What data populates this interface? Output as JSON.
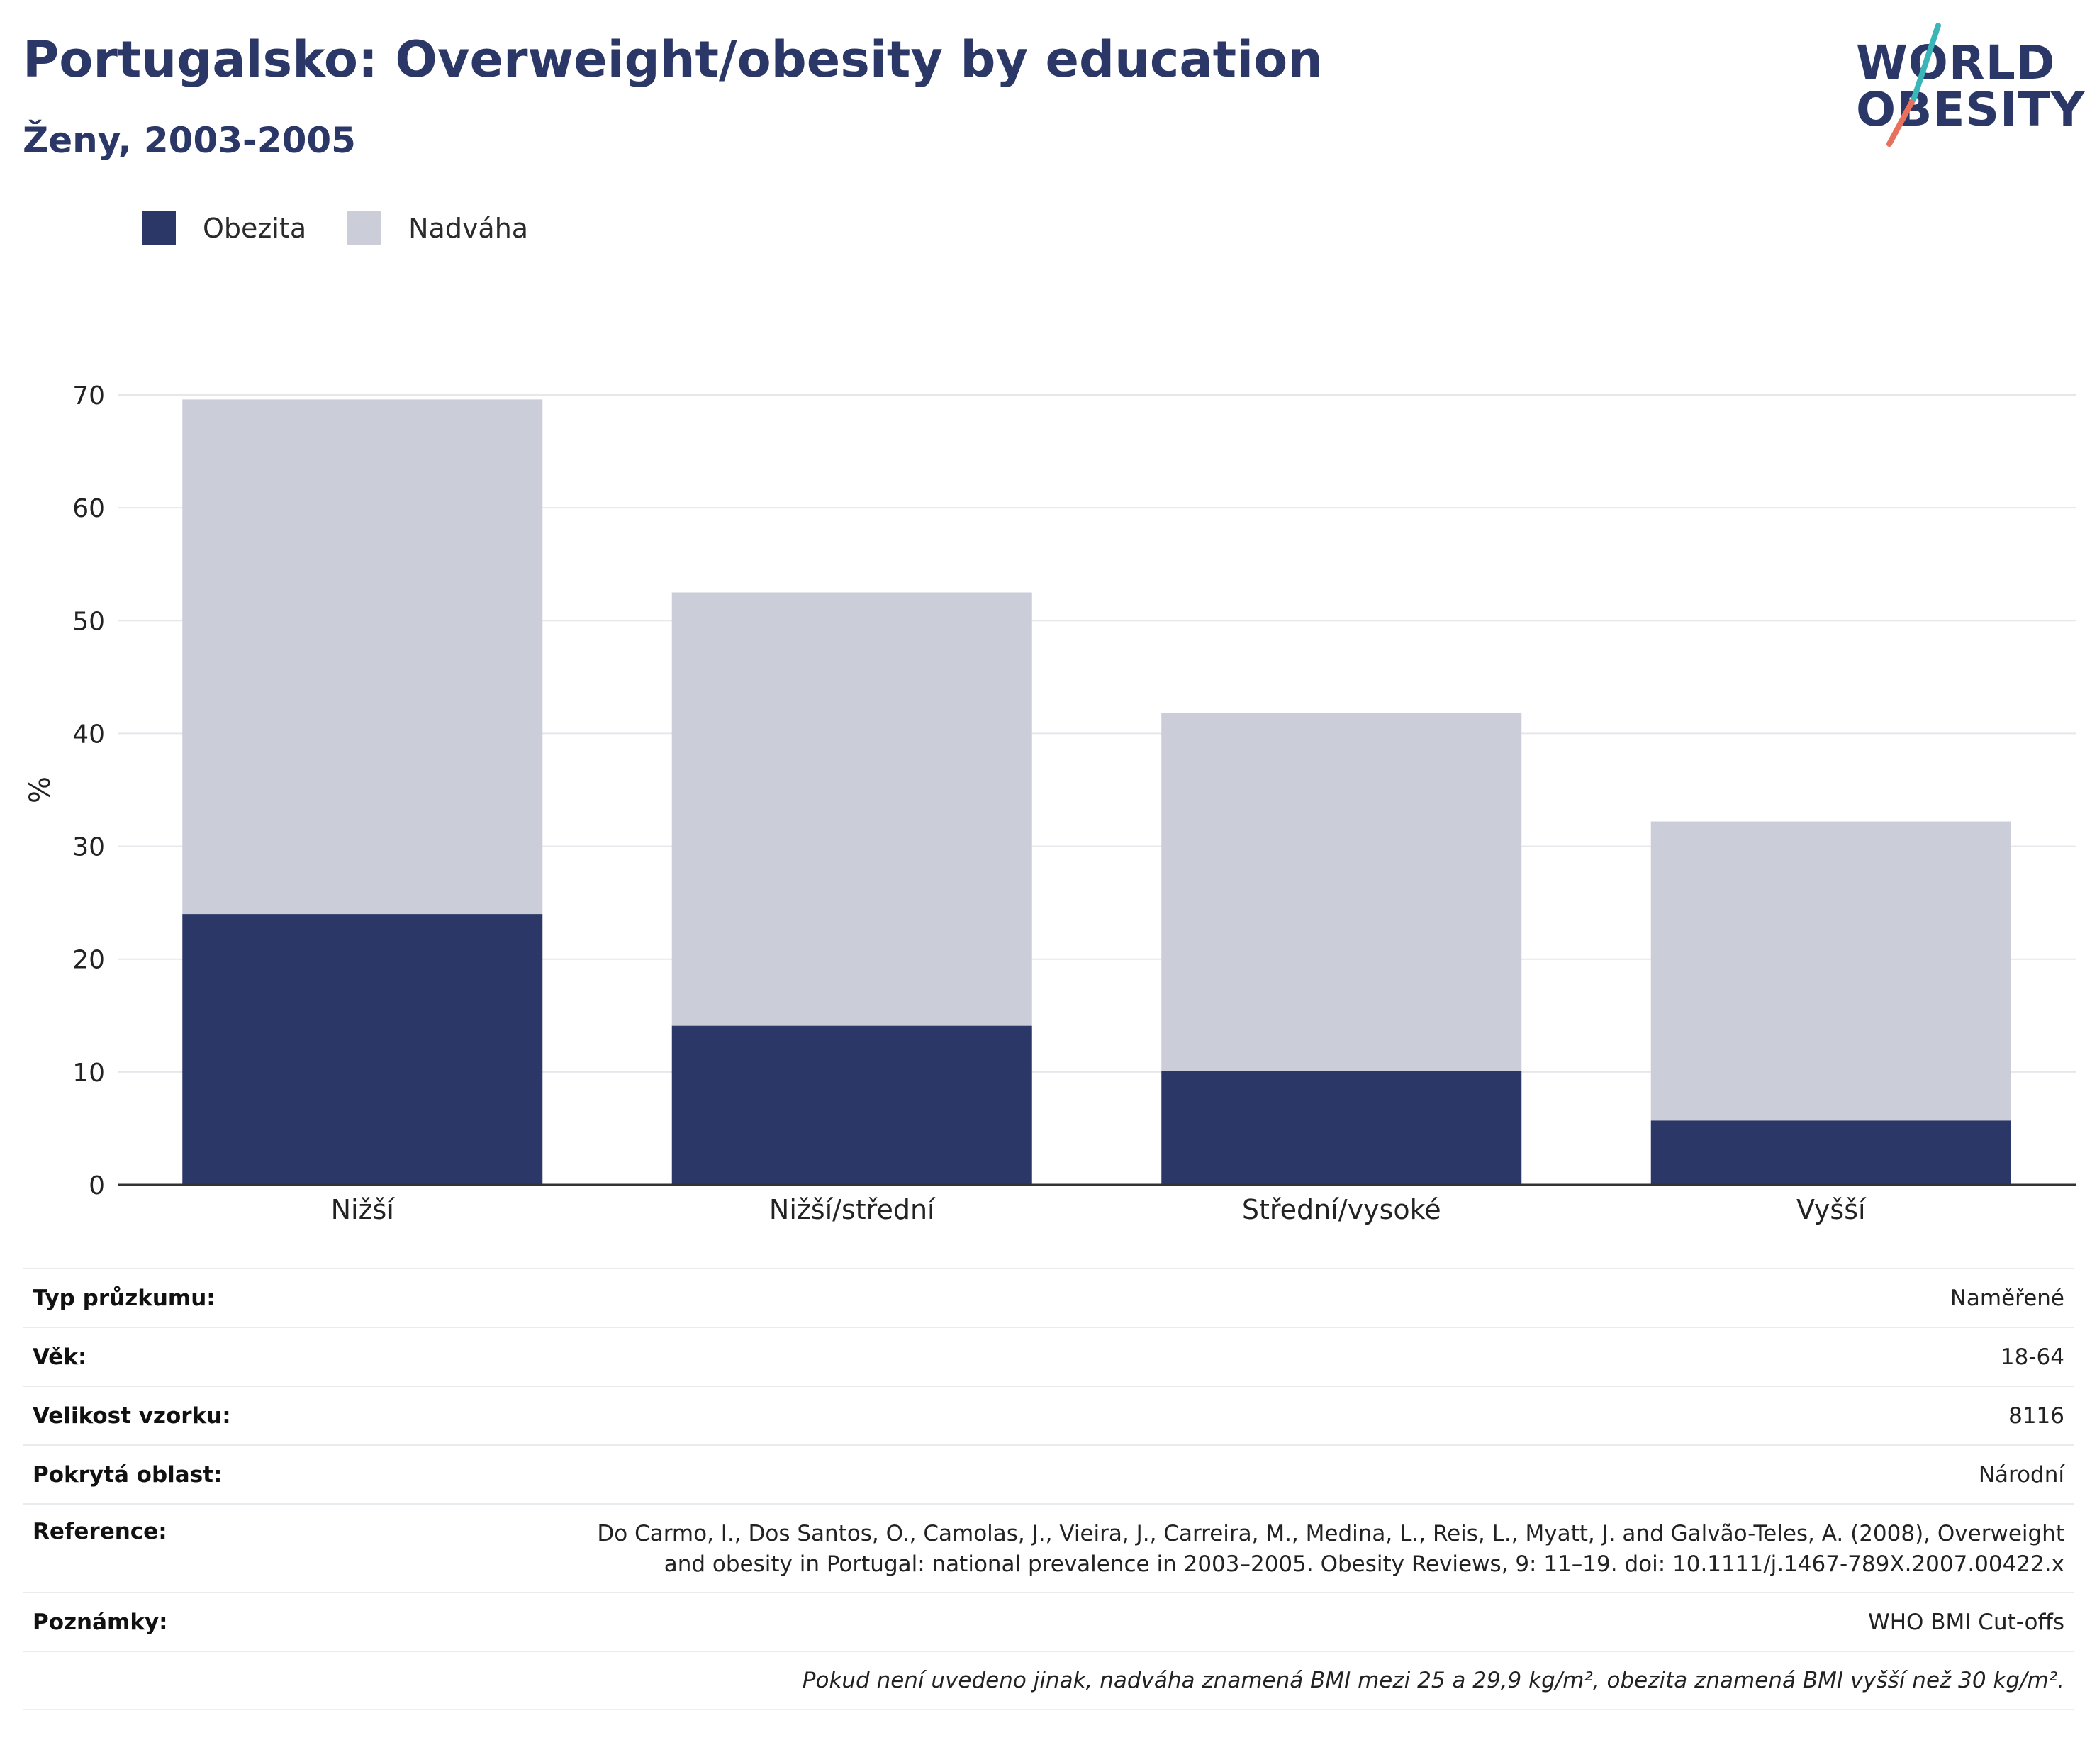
{
  "title": "Portugalsko: Overweight/obesity by education",
  "subtitle": "Ženy, 2003-2005",
  "logo": {
    "line1": "WORLD",
    "line2": "OBESITY"
  },
  "legend": [
    {
      "label": "Obezita",
      "color": "#2b3766"
    },
    {
      "label": "Nadváha",
      "color": "#cbcdd8"
    }
  ],
  "chart_data": {
    "type": "bar",
    "stacked": true,
    "categories": [
      "Nižší",
      "Nižší/střední",
      "Střední/vysoké",
      "Vyšší"
    ],
    "series": [
      {
        "name": "Obezita",
        "color": "#2b3766",
        "values": [
          24.0,
          14.1,
          10.1,
          5.7
        ]
      },
      {
        "name": "Nadváha",
        "color": "#cbcdd8",
        "values": [
          45.6,
          38.4,
          31.7,
          26.5
        ]
      }
    ],
    "totals": [
      69.6,
      52.5,
      41.8,
      32.2
    ],
    "ylabel": "%",
    "xlabel": "",
    "ylim": [
      0,
      70
    ],
    "yticks": [
      0,
      10,
      20,
      30,
      40,
      50,
      60,
      70
    ],
    "grid": true,
    "legend_position": "top-left"
  },
  "info": {
    "survey_type": {
      "label": "Typ průzkumu:",
      "value": "Naměřené"
    },
    "age": {
      "label": "Věk:",
      "value": "18-64"
    },
    "sample_size": {
      "label": "Velikost vzorku:",
      "value": "8116"
    },
    "area": {
      "label": "Pokrytá oblast:",
      "value": "Národní"
    },
    "reference": {
      "label": "Reference:",
      "value": "Do Carmo, I., Dos Santos, O., Camolas, J., Vieira, J., Carreira, M., Medina, L., Reis, L., Myatt, J. and Galvão-Teles, A. (2008), Overweight and obesity in Portugal: national prevalence in 2003–2005. Obesity Reviews, 9: 11–19. doi: 10.1111/j.1467-789X.2007.00422.x"
    },
    "notes": {
      "label": "Poznámky:",
      "value": "WHO BMI Cut-offs"
    },
    "footnote": "Pokud není uvedeno jinak, nadváha znamená BMI mezi 25 a 29,9 kg/m², obezita znamená BMI vyšší než 30 kg/m²."
  }
}
